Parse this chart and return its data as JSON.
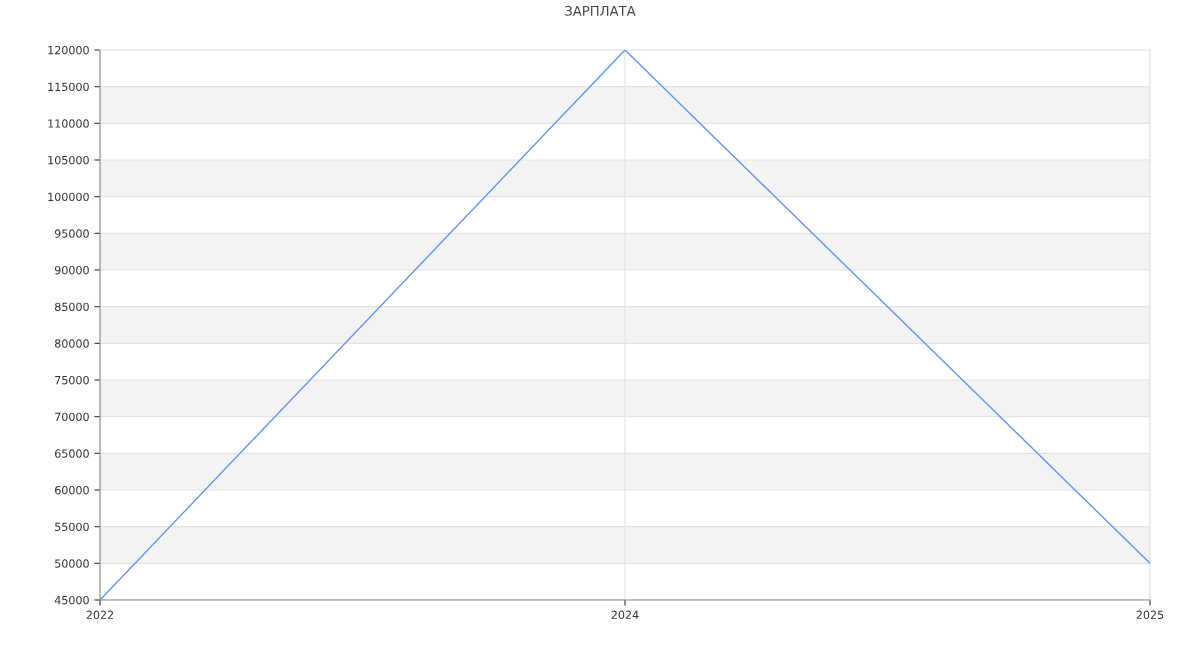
{
  "chart_data": {
    "type": "line",
    "title": "ЗАРПЛАТА",
    "categories": [
      "2022",
      "2024",
      "2025"
    ],
    "series": [
      {
        "color": "#6495ed",
        "values": [
          45000,
          120000,
          50000
        ]
      }
    ],
    "ylim": [
      45000,
      120000
    ],
    "yticks": [
      45000,
      50000,
      55000,
      60000,
      65000,
      70000,
      75000,
      80000,
      85000,
      90000,
      95000,
      100000,
      105000,
      110000,
      115000,
      120000
    ],
    "grid": true,
    "marker": "none",
    "line_style": "solid",
    "legend": false
  }
}
